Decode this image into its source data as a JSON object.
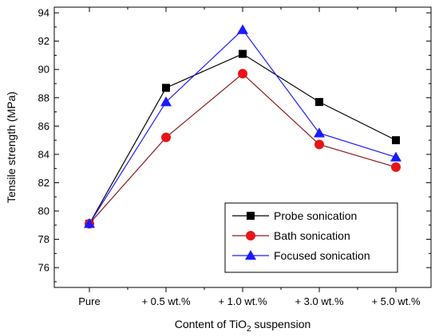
{
  "chart_data": {
    "type": "line",
    "categories": [
      "Pure",
      "+ 0.5 wt.%",
      "+ 1.0 wt.%",
      "+ 3.0 wt.%",
      "+ 5.0 wt.%"
    ],
    "series": [
      {
        "name": "Probe sonication",
        "values": [
          79.1,
          88.7,
          91.1,
          87.7,
          85.0
        ],
        "color": "#000000",
        "marker": "square",
        "marker_color": "#000000"
      },
      {
        "name": "Bath sonication",
        "values": [
          79.1,
          85.2,
          89.7,
          84.7,
          83.1
        ],
        "color": "#8b1a1a",
        "marker": "circle",
        "marker_color": "#e8141a"
      },
      {
        "name": "Focused sonication",
        "values": [
          79.1,
          87.7,
          92.8,
          85.5,
          83.8
        ],
        "color": "#1a1aff",
        "marker": "triangle",
        "marker_color": "#1a1aff"
      }
    ],
    "xlabel_parts": [
      "Content of TiO",
      "2",
      " suspension"
    ],
    "ylabel": "Tensile strength (MPa)",
    "ylim": [
      74.6,
      94.4
    ],
    "yticks": [
      "76",
      "78",
      "80",
      "82",
      "84",
      "86",
      "88",
      "90",
      "92",
      "94"
    ],
    "grid": false,
    "legend_position": "bottom-right"
  }
}
